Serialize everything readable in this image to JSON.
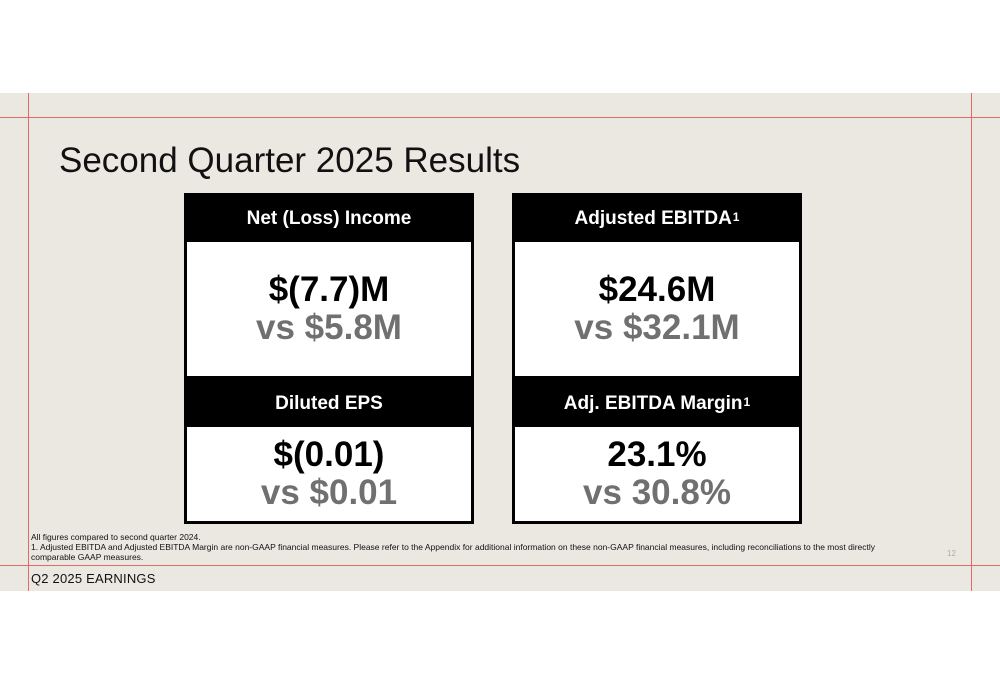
{
  "title": "Second Quarter 2025 Results",
  "cards": {
    "net_income": {
      "header": "Net (Loss) Income",
      "value": "$(7.7)M",
      "comparison": "vs $5.8M"
    },
    "adj_ebitda": {
      "header": "Adjusted EBITDA",
      "footnote_ref": "1",
      "value": "$24.6M",
      "comparison": "vs $32.1M"
    },
    "diluted_eps": {
      "header": "Diluted EPS",
      "value": "$(0.01)",
      "comparison": "vs $0.01"
    },
    "adj_ebitda_margin": {
      "header": "Adj. EBITDA Margin",
      "footnote_ref": "1",
      "value": "23.1%",
      "comparison": "vs 30.8%"
    }
  },
  "footnotes": {
    "line1": "All figures compared to second quarter 2024.",
    "line2": "1. Adjusted EBITDA and Adjusted EBITDA Margin are non-GAAP financial measures. Please refer to the Appendix for additional information on these non-GAAP financial measures, including reconciliations to the most directly comparable GAAP measures."
  },
  "page_number": "12",
  "footer_label": "Q2 2025 EARNINGS",
  "colors": {
    "background": "#ebe8e2",
    "card_header": "#000000",
    "comparison_text": "#707070",
    "guide_lines": "#e06a6a"
  }
}
